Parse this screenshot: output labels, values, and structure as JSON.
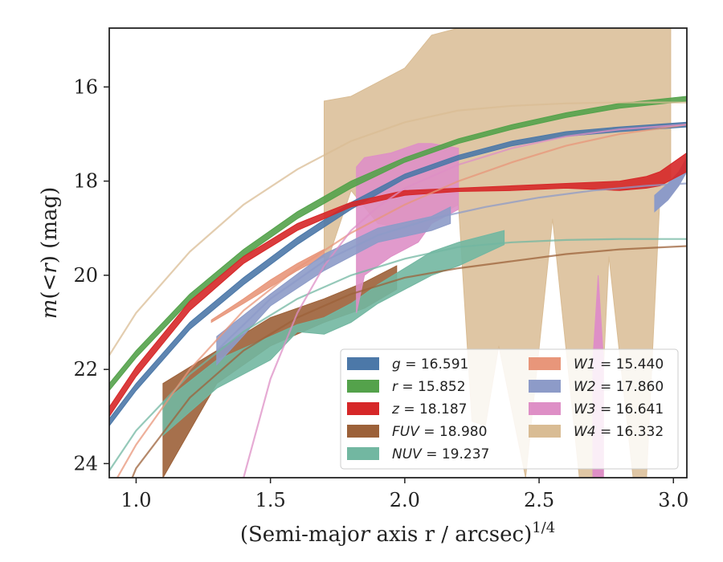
{
  "chart_data": {
    "type": "area",
    "xlabel": "(Semi-major axis r / arcsec)^{1/4}",
    "ylabel": "m(<r) (mag)",
    "xlim": [
      0.9,
      3.05
    ],
    "ylim": [
      24.3,
      14.75
    ],
    "y_inverted": true,
    "xticks": [
      1.0,
      1.5,
      2.0,
      2.5,
      3.0
    ],
    "xtick_labels": [
      "1.0",
      "1.5",
      "2.0",
      "2.5",
      "3.0"
    ],
    "yticks": [
      16,
      18,
      20,
      22,
      24
    ],
    "ytick_labels": [
      "16",
      "18",
      "20",
      "22",
      "24"
    ],
    "grid": false,
    "legend_position": "lower-right",
    "legend_columns": 2,
    "series": [
      {
        "name": "g = 16.591",
        "label_var": "g",
        "label_val": "16.591",
        "color": "#4C78A8",
        "band": {
          "x": [
            0.9,
            1.0,
            1.2,
            1.4,
            1.6,
            1.8,
            2.0,
            2.2,
            2.4,
            2.6,
            2.8,
            3.05
          ],
          "lo": [
            23.05,
            22.3,
            21.0,
            20.05,
            19.2,
            18.45,
            17.85,
            17.45,
            17.15,
            16.95,
            16.85,
            16.75
          ],
          "hi": [
            23.2,
            22.45,
            21.15,
            20.2,
            19.35,
            18.6,
            17.95,
            17.55,
            17.25,
            17.05,
            16.95,
            16.85
          ]
        },
        "curve": null
      },
      {
        "name": "r = 15.852",
        "label_var": "r",
        "label_val": "15.852",
        "color": "#54A24B",
        "band": {
          "x": [
            0.9,
            1.0,
            1.2,
            1.4,
            1.6,
            1.8,
            2.0,
            2.2,
            2.4,
            2.6,
            2.8,
            3.05
          ],
          "lo": [
            22.3,
            21.6,
            20.4,
            19.45,
            18.65,
            18.0,
            17.5,
            17.1,
            16.8,
            16.55,
            16.35,
            16.2
          ],
          "hi": [
            22.45,
            21.75,
            20.55,
            19.6,
            18.8,
            18.15,
            17.6,
            17.2,
            16.9,
            16.65,
            16.45,
            16.3
          ]
        },
        "curve": null
      },
      {
        "name": "z = 18.187",
        "label_var": "z",
        "label_val": "18.187",
        "color": "#D62728",
        "band": {
          "x": [
            0.9,
            1.0,
            1.2,
            1.4,
            1.6,
            1.8,
            2.0,
            2.2,
            2.4,
            2.6,
            2.8,
            2.9,
            2.95,
            3.05
          ],
          "lo": [
            22.8,
            21.95,
            20.55,
            19.6,
            18.9,
            18.45,
            18.2,
            18.15,
            18.1,
            18.05,
            18.0,
            17.9,
            17.8,
            17.4
          ],
          "hi": [
            23.0,
            22.15,
            20.75,
            19.75,
            19.05,
            18.55,
            18.3,
            18.22,
            18.2,
            18.15,
            18.2,
            18.15,
            18.1,
            17.8
          ]
        },
        "curve": null
      },
      {
        "name": "FUV = 18.980",
        "label_var": "FUV",
        "label_val": "18.980",
        "color": "#9C6139",
        "band": {
          "x": [
            1.1,
            1.3,
            1.5,
            1.7,
            1.85,
            1.97
          ],
          "lo": [
            22.3,
            21.6,
            20.9,
            20.5,
            20.15,
            19.8
          ],
          "hi": [
            24.3,
            22.3,
            21.5,
            21.0,
            20.7,
            20.3
          ]
        },
        "curve": {
          "x": [
            0.9,
            1.0,
            1.2,
            1.4,
            1.6,
            1.8,
            2.0,
            2.2,
            2.4,
            2.6,
            2.8,
            3.05
          ],
          "y": [
            25.5,
            24.1,
            22.6,
            21.6,
            20.9,
            20.4,
            20.05,
            19.85,
            19.7,
            19.55,
            19.45,
            19.38
          ]
        }
      },
      {
        "name": "NUV = 19.237",
        "label_var": "NUV",
        "label_val": "19.237",
        "color": "#72B7A1",
        "band": {
          "x": [
            1.1,
            1.3,
            1.5,
            1.6,
            1.7,
            1.8,
            1.9,
            2.0,
            2.1,
            2.2,
            2.37
          ],
          "lo": [
            22.7,
            21.8,
            21.3,
            21.05,
            20.9,
            20.6,
            20.2,
            19.85,
            19.5,
            19.3,
            19.05
          ],
          "hi": [
            23.4,
            22.4,
            21.8,
            21.2,
            21.25,
            21.0,
            20.6,
            20.3,
            20.0,
            19.8,
            19.35
          ]
        },
        "curve": {
          "x": [
            0.9,
            1.0,
            1.2,
            1.4,
            1.6,
            1.8,
            2.0,
            2.2,
            2.4,
            2.6,
            2.8,
            3.05
          ],
          "y": [
            24.15,
            23.3,
            22.1,
            21.2,
            20.5,
            20.0,
            19.65,
            19.4,
            19.3,
            19.25,
            19.23,
            19.23
          ]
        }
      },
      {
        "name": "W1 = 15.440",
        "label_var": "W1",
        "label_val": "15.440",
        "color": "#E8967A",
        "band": {
          "x": [
            1.28,
            1.4,
            1.5,
            1.6,
            1.7
          ],
          "lo": [
            20.95,
            20.5,
            20.1,
            19.75,
            19.45
          ],
          "hi": [
            21.0,
            20.6,
            20.25,
            19.9,
            19.6
          ]
        },
        "curve": {
          "x": [
            0.9,
            1.0,
            1.2,
            1.4,
            1.6,
            1.8,
            2.0,
            2.2,
            2.4,
            2.6,
            2.8,
            3.05
          ],
          "y": [
            24.6,
            23.6,
            22.0,
            20.75,
            19.85,
            19.1,
            18.5,
            18.0,
            17.6,
            17.25,
            17.0,
            16.8
          ]
        }
      },
      {
        "name": "W2 = 17.860",
        "label_var": "W2",
        "label_val": "17.860",
        "color": "#8D9BC8",
        "band": {
          "x": [
            1.3,
            1.5,
            1.7,
            1.9,
            2.1,
            2.17
          ],
          "lo": [
            21.3,
            20.4,
            19.55,
            19.0,
            18.75,
            18.55
          ],
          "hi": [
            21.9,
            20.65,
            19.9,
            19.3,
            19.05,
            18.9
          ]
        },
        "curve": {
          "x": [
            1.3,
            1.5,
            1.7,
            1.9,
            2.1,
            2.3,
            2.5,
            2.7,
            2.9,
            3.05
          ],
          "y": [
            21.6,
            20.5,
            19.7,
            19.15,
            18.8,
            18.55,
            18.35,
            18.2,
            18.1,
            18.05
          ]
        },
        "tail": {
          "x": [
            2.93,
            2.98,
            3.02,
            3.05
          ],
          "lo": [
            18.3,
            18.05,
            17.8,
            17.5
          ],
          "hi": [
            18.65,
            18.4,
            18.1,
            17.8
          ]
        }
      },
      {
        "name": "W3 = 16.641",
        "label_var": "W3",
        "label_val": "16.641",
        "color": "#DE8FC6",
        "band": {
          "x": [
            1.82,
            1.85,
            1.95,
            2.05,
            2.1,
            2.2
          ],
          "lo": [
            17.7,
            17.5,
            17.4,
            17.2,
            17.2,
            17.3
          ],
          "hi": [
            20.8,
            20.0,
            19.6,
            19.3,
            18.9,
            18.6
          ]
        },
        "curve": {
          "x": [
            1.4,
            1.5,
            1.6,
            1.7,
            1.8,
            1.9,
            2.0,
            2.2,
            2.4,
            2.6,
            2.8,
            3.05
          ],
          "y": [
            24.3,
            22.2,
            20.8,
            19.8,
            19.05,
            18.55,
            18.15,
            17.65,
            17.3,
            17.05,
            16.9,
            16.8
          ]
        },
        "spike": {
          "x": [
            2.7,
            2.72,
            2.74
          ],
          "top": [
            21.8,
            20.0,
            21.8
          ],
          "bottom": [
            24.3,
            24.3,
            24.3
          ]
        }
      },
      {
        "name": "W4 = 16.332",
        "label_var": "W4",
        "label_val": "16.332",
        "color": "#D9BC94",
        "band": {
          "x": [
            1.7,
            1.8,
            1.9,
            2.0,
            2.1,
            2.2,
            2.25,
            2.3,
            2.35,
            2.45,
            2.55,
            2.65,
            2.72,
            2.76,
            2.85,
            2.9,
            2.95,
            2.99
          ],
          "lo": [
            16.3,
            16.2,
            15.9,
            15.6,
            14.9,
            14.75,
            14.75,
            14.75,
            14.75,
            14.75,
            14.75,
            14.75,
            14.75,
            14.75,
            14.75,
            14.75,
            14.75,
            14.75
          ],
          "hi": [
            19.9,
            18.2,
            18.9,
            19.0,
            18.8,
            18.5,
            23.1,
            23.2,
            21.5,
            24.3,
            18.8,
            24.3,
            24.3,
            19.6,
            24.3,
            24.3,
            18.3,
            18.0
          ]
        },
        "curve": {
          "x": [
            0.9,
            1.0,
            1.2,
            1.4,
            1.6,
            1.8,
            2.0,
            2.2,
            2.4,
            2.6,
            2.8,
            3.05
          ],
          "y": [
            21.7,
            20.8,
            19.5,
            18.5,
            17.75,
            17.15,
            16.75,
            16.5,
            16.4,
            16.35,
            16.33,
            16.33
          ]
        }
      }
    ]
  }
}
